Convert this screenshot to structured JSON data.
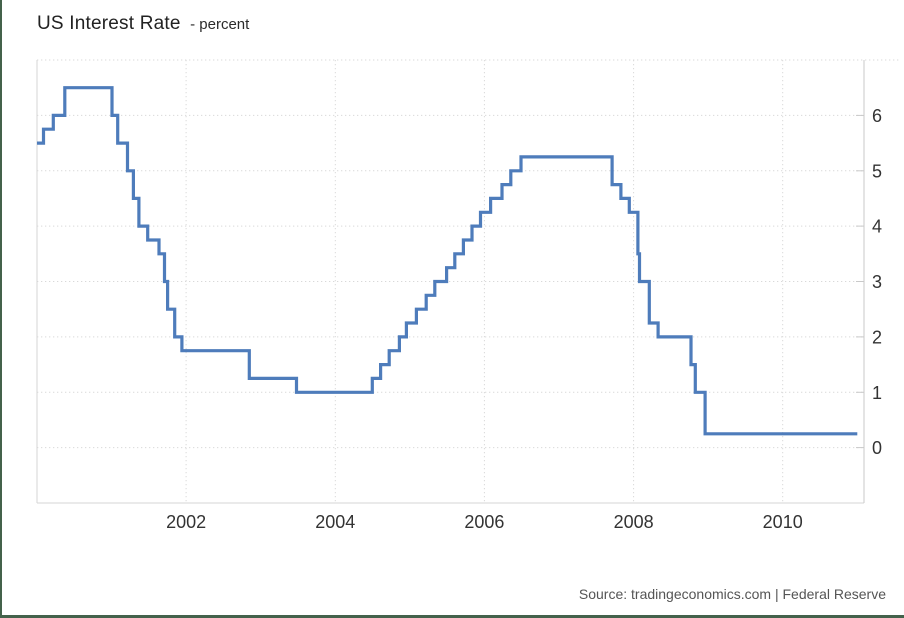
{
  "header": {
    "title": "US Interest Rate",
    "subtitle": "- percent"
  },
  "footer": {
    "source_text": "Source: tradingeconomics.com | Federal Reserve"
  },
  "colors": {
    "line": "#4e7cbb",
    "grid": "#d9d9d9",
    "plot_border": "#d6d6d6",
    "axis": "#c9c9c9",
    "tick_label": "#333333",
    "title": "#222222",
    "subtitle": "#2b2b2b",
    "source": "#555555",
    "frame_border": "#44624b",
    "background": "#ffffff"
  },
  "chart_data": {
    "type": "line",
    "line_style": "step-after",
    "title": "US Interest Rate",
    "ylabel": "percent",
    "xlabel": "",
    "legend": "none",
    "grid": "dotted",
    "xlim_decimal_years": [
      2000.0,
      2011.09
    ],
    "ylim": [
      -1,
      7
    ],
    "x_ticks": [
      2002,
      2004,
      2006,
      2008,
      2010
    ],
    "y_ticks": [
      0,
      1,
      2,
      3,
      4,
      5,
      6
    ],
    "series": [
      {
        "name": "US Interest Rate (percent)",
        "end_date": "2011-01-01",
        "steps": [
          {
            "date": "2000-01-01",
            "value": 5.5
          },
          {
            "date": "2000-02-02",
            "value": 5.75
          },
          {
            "date": "2000-03-21",
            "value": 6.0
          },
          {
            "date": "2000-05-16",
            "value": 6.5
          },
          {
            "date": "2001-01-03",
            "value": 6.0
          },
          {
            "date": "2001-01-31",
            "value": 5.5
          },
          {
            "date": "2001-03-20",
            "value": 5.0
          },
          {
            "date": "2001-04-18",
            "value": 4.5
          },
          {
            "date": "2001-05-15",
            "value": 4.0
          },
          {
            "date": "2001-06-27",
            "value": 3.75
          },
          {
            "date": "2001-08-21",
            "value": 3.5
          },
          {
            "date": "2001-09-17",
            "value": 3.0
          },
          {
            "date": "2001-10-02",
            "value": 2.5
          },
          {
            "date": "2001-11-06",
            "value": 2.0
          },
          {
            "date": "2001-12-11",
            "value": 1.75
          },
          {
            "date": "2002-11-06",
            "value": 1.25
          },
          {
            "date": "2003-06-25",
            "value": 1.0
          },
          {
            "date": "2004-06-30",
            "value": 1.25
          },
          {
            "date": "2004-08-10",
            "value": 1.5
          },
          {
            "date": "2004-09-21",
            "value": 1.75
          },
          {
            "date": "2004-11-10",
            "value": 2.0
          },
          {
            "date": "2004-12-14",
            "value": 2.25
          },
          {
            "date": "2005-02-02",
            "value": 2.5
          },
          {
            "date": "2005-03-22",
            "value": 2.75
          },
          {
            "date": "2005-05-03",
            "value": 3.0
          },
          {
            "date": "2005-06-30",
            "value": 3.25
          },
          {
            "date": "2005-08-09",
            "value": 3.5
          },
          {
            "date": "2005-09-20",
            "value": 3.75
          },
          {
            "date": "2005-11-01",
            "value": 4.0
          },
          {
            "date": "2005-12-13",
            "value": 4.25
          },
          {
            "date": "2006-01-31",
            "value": 4.5
          },
          {
            "date": "2006-03-28",
            "value": 4.75
          },
          {
            "date": "2006-05-10",
            "value": 5.0
          },
          {
            "date": "2006-06-29",
            "value": 5.25
          },
          {
            "date": "2007-09-18",
            "value": 4.75
          },
          {
            "date": "2007-10-31",
            "value": 4.5
          },
          {
            "date": "2007-12-11",
            "value": 4.25
          },
          {
            "date": "2008-01-22",
            "value": 3.5
          },
          {
            "date": "2008-01-30",
            "value": 3.0
          },
          {
            "date": "2008-03-18",
            "value": 2.25
          },
          {
            "date": "2008-04-30",
            "value": 2.0
          },
          {
            "date": "2008-10-08",
            "value": 1.5
          },
          {
            "date": "2008-10-29",
            "value": 1.0
          },
          {
            "date": "2008-12-16",
            "value": 0.25
          }
        ]
      }
    ]
  }
}
